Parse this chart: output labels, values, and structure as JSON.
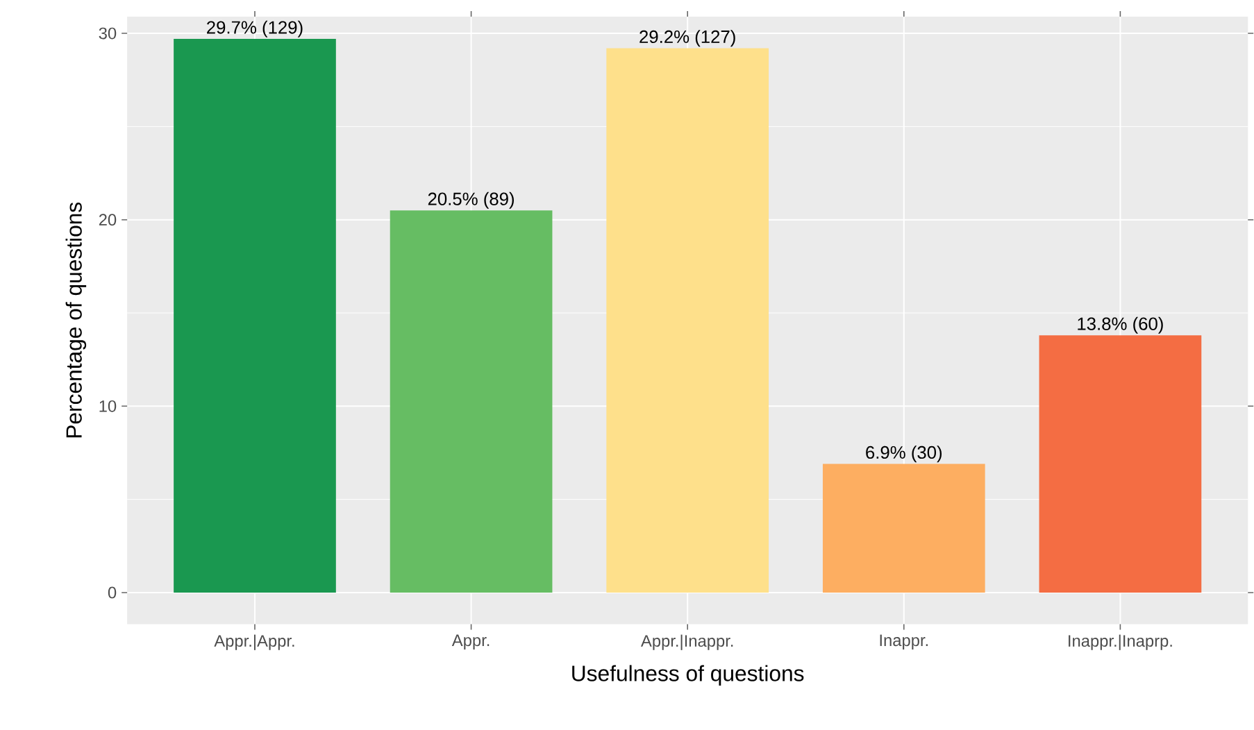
{
  "chart_data": {
    "type": "bar",
    "xlabel": "Usefulness of questions",
    "ylabel": "Percentage of questions",
    "categories": [
      "Appr.|Appr.",
      "Appr.",
      "Appr.|Inappr.",
      "Inappr.",
      "Inappr.|Inaprp."
    ],
    "values": [
      29.7,
      20.5,
      29.2,
      6.9,
      13.8
    ],
    "colors": [
      "#1a9850",
      "#66bd63",
      "#fee08b",
      "#fdae61",
      "#f46d43"
    ],
    "value_labels": [
      "29.7% (129)",
      "20.5% (89)",
      "29.2% (127)",
      "6.9% (30)",
      "13.8% (60)"
    ],
    "ylim": [
      -1.7,
      30.9
    ],
    "yticks": [
      0,
      10,
      20,
      30
    ],
    "grid": true
  }
}
